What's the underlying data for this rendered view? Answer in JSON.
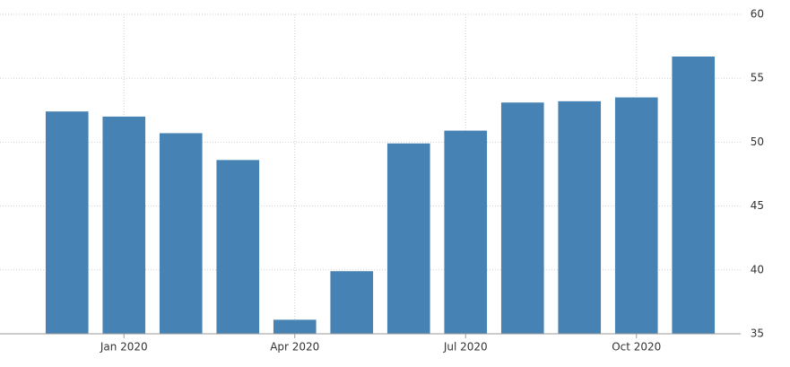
{
  "chart_data": {
    "type": "bar",
    "categories": [
      null,
      "Jan 2020",
      null,
      null,
      "Apr 2020",
      null,
      null,
      "Jul 2020",
      null,
      null,
      "Oct 2020",
      null
    ],
    "values": [
      52.4,
      52.0,
      50.7,
      48.6,
      36.1,
      39.9,
      49.9,
      50.9,
      53.1,
      53.2,
      53.5,
      56.7
    ],
    "color": "#4682b4",
    "ylim": [
      35,
      60
    ],
    "yticks": [
      35,
      40,
      45,
      50,
      55,
      60
    ],
    "grid": true
  }
}
